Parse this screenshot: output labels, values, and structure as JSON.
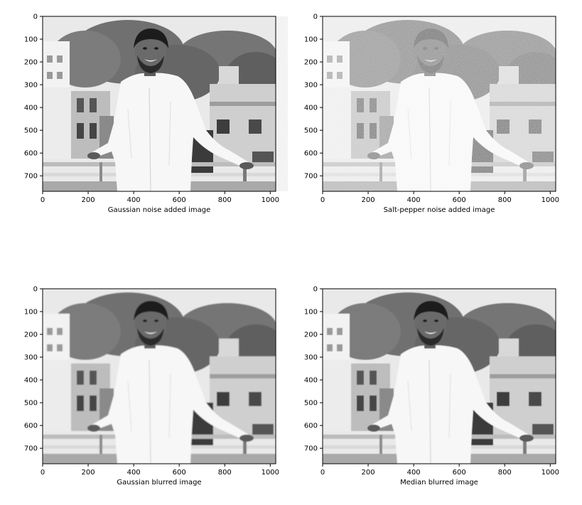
{
  "figure": {
    "panels": [
      {
        "caption": "Gaussian noise added image",
        "filter": "gaussian-noise",
        "x_ticks": [
          "0",
          "200",
          "400",
          "600",
          "800",
          "1000"
        ],
        "y_ticks": [
          "0",
          "100",
          "200",
          "300",
          "400",
          "500",
          "600",
          "700"
        ]
      },
      {
        "caption": "Salt-pepper noise added image",
        "filter": "salt-pepper-noise",
        "x_ticks": [
          "0",
          "200",
          "400",
          "600",
          "800",
          "1000"
        ],
        "y_ticks": [
          "0",
          "100",
          "200",
          "300",
          "400",
          "500",
          "600",
          "700"
        ]
      },
      {
        "caption": "Gaussian blurred image",
        "filter": "gaussian-blur",
        "x_ticks": [
          "0",
          "200",
          "400",
          "600",
          "800",
          "1000"
        ],
        "y_ticks": [
          "0",
          "100",
          "200",
          "300",
          "400",
          "500",
          "600",
          "700"
        ]
      },
      {
        "caption": "Median blurred image",
        "filter": "median-blur",
        "x_ticks": [
          "0",
          "200",
          "400",
          "600",
          "800",
          "1000"
        ],
        "y_ticks": [
          "0",
          "100",
          "200",
          "300",
          "400",
          "500",
          "600",
          "700"
        ]
      }
    ],
    "image_extent": {
      "x": [
        0,
        1024
      ],
      "y": [
        0,
        768
      ]
    },
    "x_tick_values": [
      0,
      200,
      400,
      600,
      800,
      1000
    ],
    "y_tick_values": [
      0,
      100,
      200,
      300,
      400,
      500,
      600,
      700
    ],
    "colormap": "gray"
  }
}
